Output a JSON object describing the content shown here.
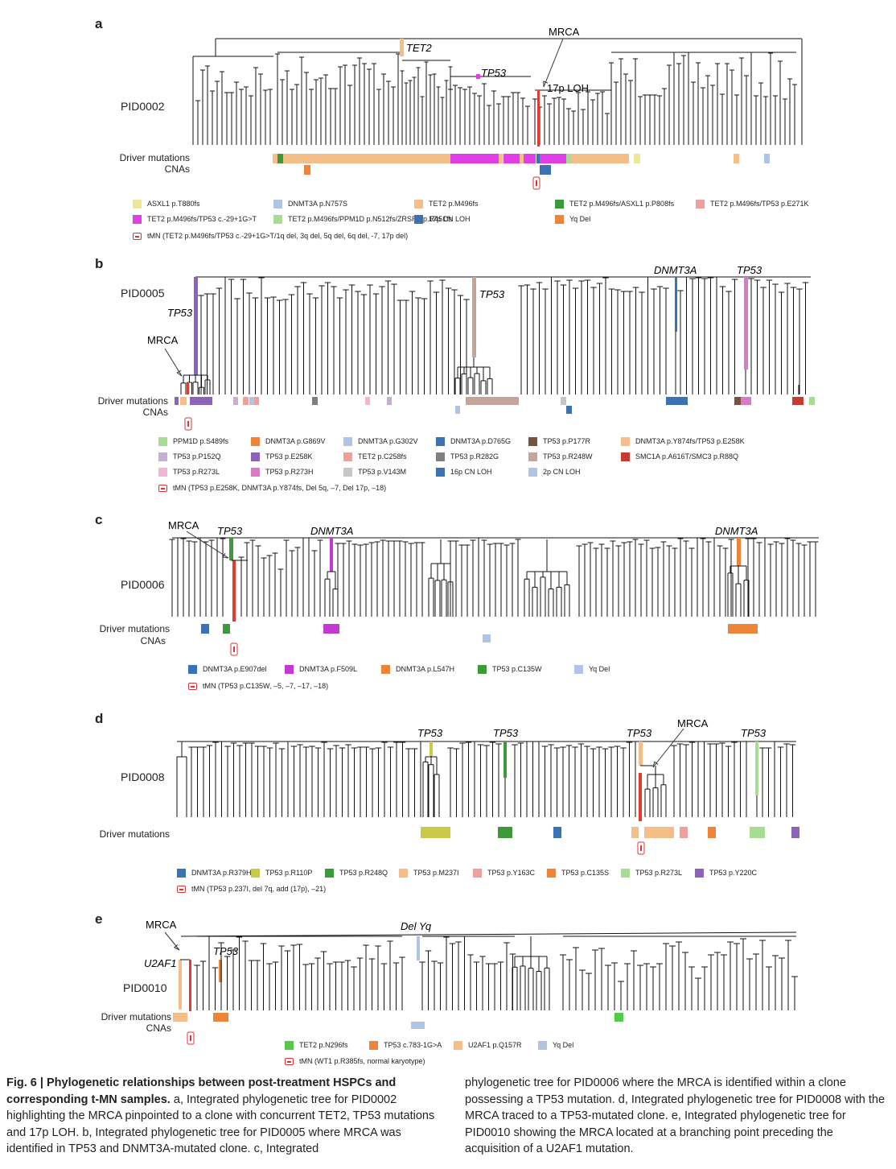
{
  "panels": {
    "a": {
      "letter": "a",
      "sample": "PID0002",
      "row1": "Driver mutations",
      "row2": "CNAs",
      "labels": {
        "tet2": "TET2",
        "mrca": "MRCA",
        "tp53": "TP53",
        "loh": "17p LOH"
      },
      "legend": [
        {
          "label": "ASXL1 p.T880fs",
          "color": "#ece79a"
        },
        {
          "label": "DNMT3A p.N757S",
          "color": "#b1c4e4"
        },
        {
          "label": "TET2 p.M496fs",
          "color": "#f4be88"
        },
        {
          "label": "TET2 p.M496fs/ASXL1 p.P808fs",
          "color": "#3d9a3a"
        },
        {
          "label": "TET2 p.M496fs/TP53 p.E271K",
          "color": "#f0a09c"
        },
        {
          "label": "TET2 p.M496fs/TP53 c.-29+1G>T",
          "color": "#e23ee6"
        },
        {
          "label": "TET2 p.M496fs/PPM1D p.N512fs/ZRSR2 p.R451fs",
          "color": "#a8dc92"
        },
        {
          "label": "17p CN LOH",
          "color": "#3a72b4"
        },
        {
          "label": "Yq Del",
          "color": "#ee8437"
        }
      ],
      "tmn": "tMN (TET2 p.M496fs/TP53 c.-29+1G>T/1q del, 3q del, 5q del, 6q del, -7, 17p del)"
    },
    "b": {
      "letter": "b",
      "sample": "PID0005",
      "row1": "Driver mutations",
      "row2": "CNAs",
      "labels": {
        "tp53a": "TP53",
        "mrca": "MRCA",
        "tp53b": "TP53",
        "dnmt3a": "DNMT3A",
        "tp53c": "TP53"
      },
      "legend": [
        {
          "label": "PPM1D p.S489fs",
          "color": "#a8dc92"
        },
        {
          "label": "DNMT3A p.G869V",
          "color": "#ee8437"
        },
        {
          "label": "DNMT3A p.G302V",
          "color": "#b1c4e4"
        },
        {
          "label": "DNMT3A p.D765G",
          "color": "#3a72b4"
        },
        {
          "label": "TP53 p.P177R",
          "color": "#7a5040"
        },
        {
          "label": "DNMT3A p.Y874fs/TP53 p.E258K",
          "color": "#f4be88"
        },
        {
          "label": "TP53 p.P152Q",
          "color": "#c5b0d5"
        },
        {
          "label": "TP53 p.E258K",
          "color": "#8c63b8"
        },
        {
          "label": "TET2 p.C258fs",
          "color": "#f0a09c"
        },
        {
          "label": "TP53 p.R282G",
          "color": "#7f7f7f"
        },
        {
          "label": "TP53 p.R248W",
          "color": "#c4a59a"
        },
        {
          "label": "SMC1A p.A616T/SMC3 p.R88Q",
          "color": "#c83a30"
        },
        {
          "label": "TP53 p.R273L",
          "color": "#f2b6d2"
        },
        {
          "label": "TP53 p.R273H",
          "color": "#d97bc4"
        },
        {
          "label": "TP53 p.V143M",
          "color": "#c7c7c7"
        },
        {
          "label": "16p CN LOH",
          "color": "#3a72b4"
        },
        {
          "label": "2p CN LOH",
          "color": "#b1c4e4"
        }
      ],
      "tmn": "tMN (TP53 p.E258K, DNMT3A p.Y874fs, Del 5q, –7, Del 17p, –18)"
    },
    "c": {
      "letter": "c",
      "sample": "PID0006",
      "row1": "Driver mutations",
      "row2": "CNAs",
      "labels": {
        "mrca": "MRCA",
        "tp53": "TP53",
        "dnmt3a1": "DNMT3A",
        "dnmt3a2": "DNMT3A"
      },
      "legend": [
        {
          "label": "DNMT3A p.E907del",
          "color": "#3a72b4"
        },
        {
          "label": "DNMT3A p.F509L",
          "color": "#c23ad0"
        },
        {
          "label": "DNMT3A p.L547H",
          "color": "#ee8437"
        },
        {
          "label": "TP53 p.C135W",
          "color": "#3d9a3a"
        },
        {
          "label": "Yq Del",
          "color": "#b1c4e4"
        }
      ],
      "tmn": "tMN (TP53 p.C135W, –5, –7, –17, –18)"
    },
    "d": {
      "letter": "d",
      "sample": "PID0008",
      "row1": "Driver mutations",
      "labels": {
        "tp53a": "TP53",
        "tp53b": "TP53",
        "tp53c": "TP53",
        "mrca": "MRCA",
        "tp53d": "TP53"
      },
      "legend": [
        {
          "label": "DNMT3A p.R379H",
          "color": "#3a72b4"
        },
        {
          "label": "TP53 p.R110P",
          "color": "#c9c94a"
        },
        {
          "label": "TP53 p.R248Q",
          "color": "#3d9a3a"
        },
        {
          "label": "TP53 p.M237I",
          "color": "#f4be88"
        },
        {
          "label": "TP53 p.Y163C",
          "color": "#f0a09c"
        },
        {
          "label": "TP53 p.C135S",
          "color": "#ee8437"
        },
        {
          "label": "TP53 p.R273L",
          "color": "#a8dc92"
        },
        {
          "label": "TP53 p.Y220C",
          "color": "#8c63b8"
        }
      ],
      "tmn": "tMN (TP53 p.237I, del 7q, add (17p), –21)"
    },
    "e": {
      "letter": "e",
      "sample": "PID0010",
      "row1": "Driver mutations",
      "row2": "CNAs",
      "labels": {
        "mrca": "MRCA",
        "u2af1": "U2AF1",
        "tp53": "TP53",
        "delyq": "Del Yq"
      },
      "legend": [
        {
          "label": "TET2 p.N296fs",
          "color": "#55c94a"
        },
        {
          "label": "TP53 c.783-1G>A",
          "color": "#ee8437"
        },
        {
          "label": "U2AF1 p.Q157R",
          "color": "#f4be88"
        },
        {
          "label": "Yq Del",
          "color": "#b1c4e4"
        }
      ],
      "tmn": "tMN (WT1 p.R385fs, normal karyotype)"
    }
  },
  "caption": {
    "title": "Fig. 6 | Phylogenetic relationships between post-treatment HSPCs and corresponding t-MN samples.",
    "left_body": "a, Integrated phylogenetic tree for PID0002 highlighting the MRCA pinpointed to a clone with concurrent TET2, TP53 mutations and 17p LOH. b, Integrated phylogenetic tree for PID0005 where MRCA was identified in TP53 and DNMT3A-mutated clone. c, Integrated",
    "right_body": "phylogenetic tree for PID0006 where the MRCA is identified within a clone possessing a TP53 mutation. d, Integrated phylogenetic tree for PID0008 with the MRCA traced to a TP53-mutated clone. e, Integrated phylogenetic tree for PID0010 showing the MRCA located at a branching point preceding the acquisition of a U2AF1 mutation."
  }
}
